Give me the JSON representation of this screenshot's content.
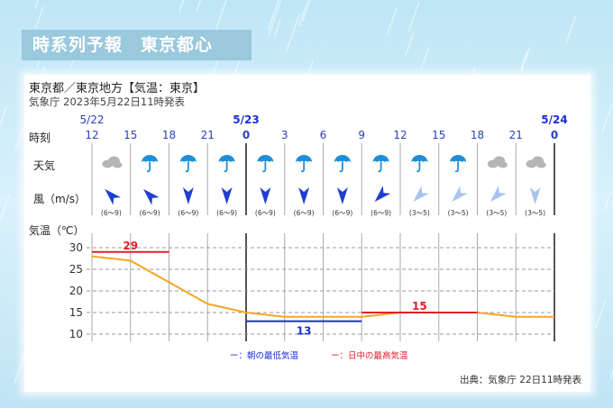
{
  "banner_title": "時系列予報　東京都心",
  "header": {
    "line1": "東京都／東京地方【気温：東京】",
    "line2": "気象庁 2023年5月22日11時発表"
  },
  "row_labels": {
    "time": "時刻",
    "weather": "天気",
    "wind": "風（m/s）",
    "temp": "気温（℃）"
  },
  "source": "出典：気象庁 22日11時発表",
  "colors": {
    "line": "#f5a623",
    "max": "#e0202a",
    "min": "#1a2fd8",
    "wind_strong": "#1f3fd0",
    "wind_weak": "#a8c4ee",
    "rain": "#1d8fd8",
    "cloud": "#b5b5b5"
  },
  "chart_data": {
    "type": "line",
    "date_labels": [
      {
        "label": "5/22",
        "index": 0
      },
      {
        "label": "5/23",
        "index": 4
      },
      {
        "label": "5/24",
        "index": 12
      }
    ],
    "hours": [
      "12",
      "15",
      "18",
      "21",
      "0",
      "3",
      "6",
      "9",
      "12",
      "15",
      "18",
      "21",
      "0"
    ],
    "bold_hours": [
      4,
      12
    ],
    "weather": [
      "cloudy",
      "rain",
      "rain",
      "rain",
      "rain",
      "rain",
      "rain",
      "rain",
      "rain",
      "rain",
      "cloudy",
      "cloudy"
    ],
    "wind": [
      {
        "dir": "SE",
        "range": "(6〜9)",
        "strength": "strong"
      },
      {
        "dir": "SE",
        "range": "(6〜9)",
        "strength": "strong"
      },
      {
        "dir": "N",
        "range": "(6〜9)",
        "strength": "strong"
      },
      {
        "dir": "N",
        "range": "(6〜9)",
        "strength": "strong"
      },
      {
        "dir": "N",
        "range": "(6〜9)",
        "strength": "strong"
      },
      {
        "dir": "N",
        "range": "(6〜9)",
        "strength": "strong"
      },
      {
        "dir": "N",
        "range": "(6〜9)",
        "strength": "strong"
      },
      {
        "dir": "NE",
        "range": "(6〜9)",
        "strength": "strong"
      },
      {
        "dir": "NE",
        "range": "(3〜5)",
        "strength": "weak"
      },
      {
        "dir": "NE",
        "range": "(3〜5)",
        "strength": "weak"
      },
      {
        "dir": "NE",
        "range": "(3〜5)",
        "strength": "weak"
      },
      {
        "dir": "N",
        "range": "(3〜5)",
        "strength": "weak"
      }
    ],
    "temperature": [
      28,
      27,
      22,
      17,
      15,
      14,
      14,
      14,
      15,
      15,
      15,
      14,
      14
    ],
    "ylim": [
      10,
      30
    ],
    "yticks": [
      10,
      15,
      20,
      25,
      30
    ],
    "max_temp": [
      {
        "value": 29,
        "label": "29",
        "from": 0,
        "to": 2
      },
      {
        "value": 15,
        "label": "15",
        "from": 7,
        "to": 10
      }
    ],
    "min_temp": [
      {
        "value": 13,
        "label": "13",
        "from": 4,
        "to": 7
      }
    ],
    "legend": {
      "min": "ー：朝の最低気温",
      "max": "ー：日中の最高気温"
    }
  }
}
